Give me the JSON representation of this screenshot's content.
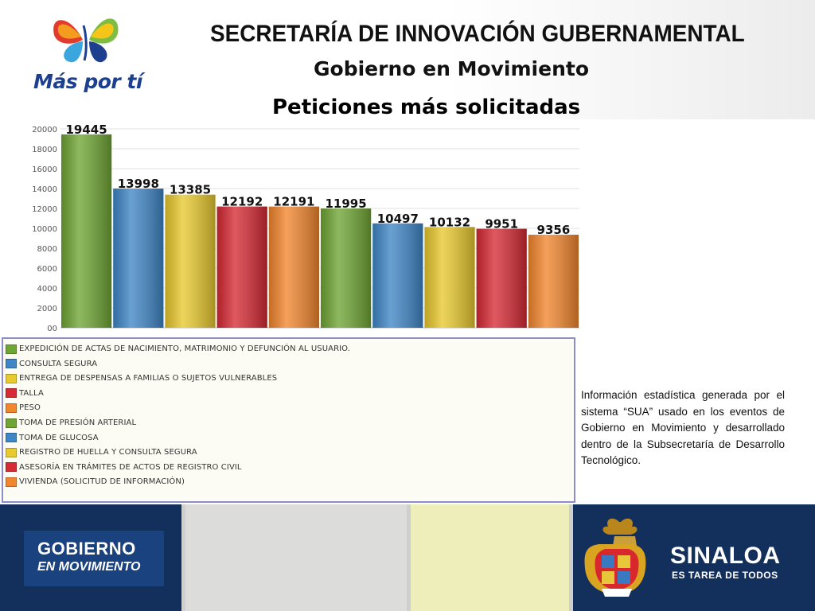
{
  "header": {
    "logo_text": "Más por tí",
    "title": "SECRETARÍA DE INNOVACIÓN GUBERNAMENTAL",
    "subtitle": "Gobierno en Movimiento"
  },
  "chart_data": {
    "type": "bar",
    "title": "Peticiones más solicitadas",
    "xlabel": "",
    "ylabel": "",
    "ylim": [
      0,
      20000
    ],
    "yticks": [
      "00",
      "2000",
      "4000",
      "6000",
      "8000",
      "10000",
      "12000",
      "14000",
      "16000",
      "18000",
      "20000"
    ],
    "grid": true,
    "legend_position": "bottom",
    "categories": [
      "EXPEDICIÓN DE ACTAS DE NACIMIENTO, MATRIMONIO Y DEFUNCIÓN AL USUARIO.",
      "CONSULTA SEGURA",
      "ENTREGA DE DESPENSAS A  FAMILIAS O SUJETOS VULNERABLES",
      "TALLA",
      "PESO",
      "TOMA DE PRESIÓN ARTERIAL",
      "TOMA DE GLUCOSA",
      "REGISTRO DE HUELLA Y CONSULTA SEGURA",
      "ASESORÍA EN TRÁMITES DE   ACTOS DE REGISTRO CIVIL",
      "VIVIENDA (SOLICITUD DE INFORMACIÓN)"
    ],
    "values": [
      19445,
      13998,
      13385,
      12192,
      12191,
      11995,
      10497,
      10132,
      9951,
      9356
    ],
    "value_labels": [
      "19445",
      "13998",
      "13385",
      "12192",
      "12191",
      "11995",
      "10497",
      "10132",
      "9951",
      "9356"
    ],
    "colors": [
      "#6fa534",
      "#3f86c6",
      "#e8c92e",
      "#d62a34",
      "#f2862e",
      "#6fa534",
      "#3f86c6",
      "#e8c92e",
      "#d62a34",
      "#f2862e"
    ]
  },
  "note": "Información estadística generada por el sistema “SUA” usado en los eventos de Gobierno en Movimiento y desarrollado dentro de la Subsecretaría de Desarrollo Tecnológico.",
  "footer": {
    "left_line1": "GOBIERNO",
    "left_line2": "EN MOVIMIENTO",
    "right_title": "SINALOA",
    "right_subtitle": "ES TAREA DE TODOS"
  }
}
